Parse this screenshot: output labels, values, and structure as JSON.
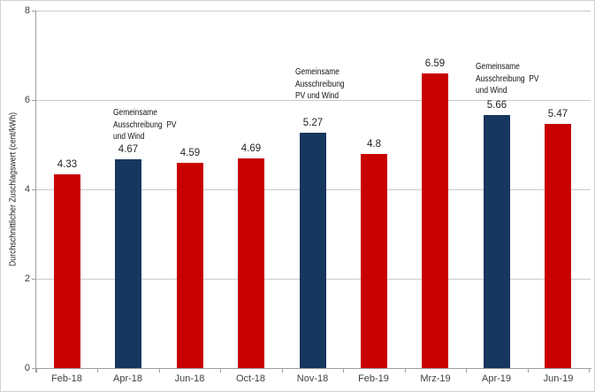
{
  "chart_data": {
    "type": "bar",
    "title": "",
    "xlabel": "",
    "ylabel": "Durchschnittlicher  Zuschlagswert  (cent/kWh)",
    "ylim": [
      0,
      8
    ],
    "yticks": [
      0,
      2,
      4,
      6,
      8
    ],
    "grid": true,
    "legend": "none",
    "categories": [
      "Feb-18",
      "Apr-18",
      "Jun-18",
      "Oct-18",
      "Nov-18",
      "Feb-19",
      "Mrz-19",
      "Apr-19",
      "Jun-19"
    ],
    "values": [
      4.33,
      4.67,
      4.59,
      4.69,
      5.27,
      4.8,
      6.59,
      5.66,
      5.47
    ],
    "bar_colors": [
      "#c80000",
      "#17375e",
      "#c80000",
      "#c80000",
      "#17375e",
      "#c80000",
      "#c80000",
      "#17375e",
      "#c80000"
    ],
    "colors": {
      "single_auction_red": "#c80000",
      "joint_auction_blue": "#17375e",
      "gridline": "#c9c9c9",
      "axis": "#9e9e9e"
    },
    "annotations": [
      {
        "category_index": 1,
        "lines": [
          "Gemeinsame",
          "Ausschreibung  PV",
          "und Wind"
        ],
        "y_top_value": 5.84,
        "dx": -2
      },
      {
        "category_index": 4,
        "lines": [
          "Gemeinsame",
          "Ausschreibung",
          "PV und Wind"
        ],
        "y_top_value": 6.76,
        "dx": -5
      },
      {
        "category_index": 7,
        "lines": [
          "Gemeinsame",
          "Ausschreibung  PV",
          "und Wind"
        ],
        "y_top_value": 6.88,
        "dx": -9
      }
    ]
  }
}
